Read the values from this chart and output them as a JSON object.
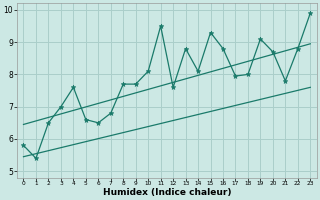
{
  "xlabel": "Humidex (Indice chaleur)",
  "ylabel": "",
  "bg_color": "#cce8e4",
  "grid_color": "#aaceca",
  "line_color": "#1a7a6a",
  "xlim": [
    -0.5,
    23.5
  ],
  "ylim": [
    4.8,
    10.2
  ],
  "xticks": [
    0,
    1,
    2,
    3,
    4,
    5,
    6,
    7,
    8,
    9,
    10,
    11,
    12,
    13,
    14,
    15,
    16,
    17,
    18,
    19,
    20,
    21,
    22,
    23
  ],
  "yticks": [
    5,
    6,
    7,
    8,
    9,
    10
  ],
  "data_x": [
    0,
    1,
    2,
    3,
    4,
    5,
    6,
    7,
    8,
    9,
    10,
    11,
    12,
    13,
    14,
    15,
    16,
    17,
    18,
    19,
    20,
    21,
    22,
    23
  ],
  "data_y": [
    5.8,
    5.4,
    6.5,
    7.0,
    7.6,
    6.6,
    6.5,
    6.8,
    7.7,
    7.7,
    8.1,
    9.5,
    7.6,
    8.8,
    8.1,
    9.3,
    8.8,
    7.95,
    8.0,
    9.1,
    8.7,
    7.8,
    8.8,
    9.9
  ],
  "trend1_x": [
    0,
    23
  ],
  "trend1_y": [
    6.45,
    8.95
  ],
  "trend2_x": [
    0,
    23
  ],
  "trend2_y": [
    5.45,
    7.6
  ]
}
